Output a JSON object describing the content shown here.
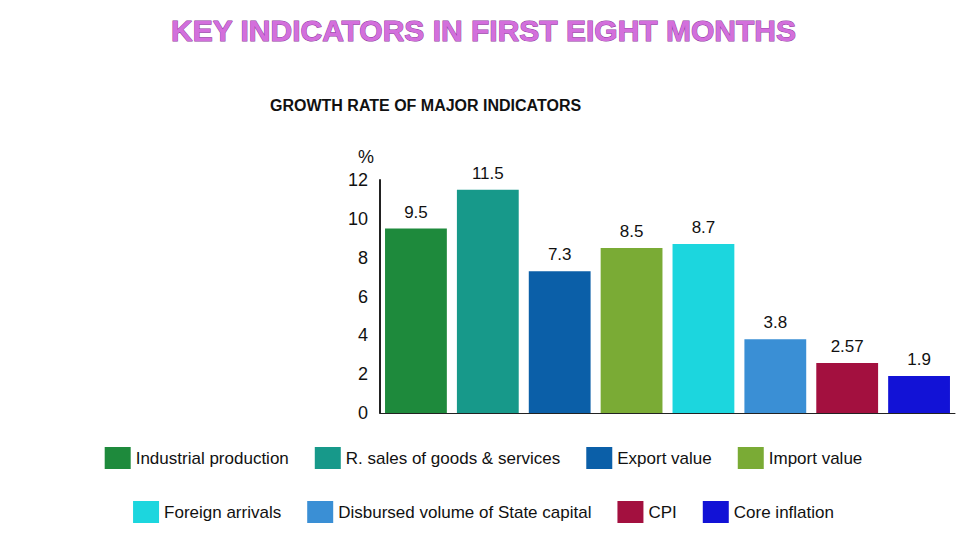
{
  "chart_data": {
    "type": "bar",
    "title": "KEY INDICATORS IN FIRST EIGHT MONTHS",
    "subtitle": "GROWTH RATE OF MAJOR INDICATORS",
    "y_label": "%",
    "categories": [
      "Industrial production",
      "R. sales of goods & services",
      "Export value",
      "Import value",
      "Foreign arrivals",
      "Disbursed volume of State capital",
      "CPI",
      "Core inflation"
    ],
    "values": [
      9.5,
      11.5,
      7.3,
      8.5,
      8.7,
      3.8,
      2.57,
      1.9
    ],
    "colors": [
      "#1e8a3c",
      "#17998a",
      "#0b5fa8",
      "#7aab35",
      "#1cd6de",
      "#3a8fd5",
      "#a3103f",
      "#1212d6"
    ],
    "ylim": [
      0,
      12
    ],
    "yticks": [
      0,
      2,
      4,
      6,
      8,
      10,
      12
    ],
    "grid": false,
    "legend": "bottom",
    "data_labels": true,
    "tick_labels": "y"
  }
}
